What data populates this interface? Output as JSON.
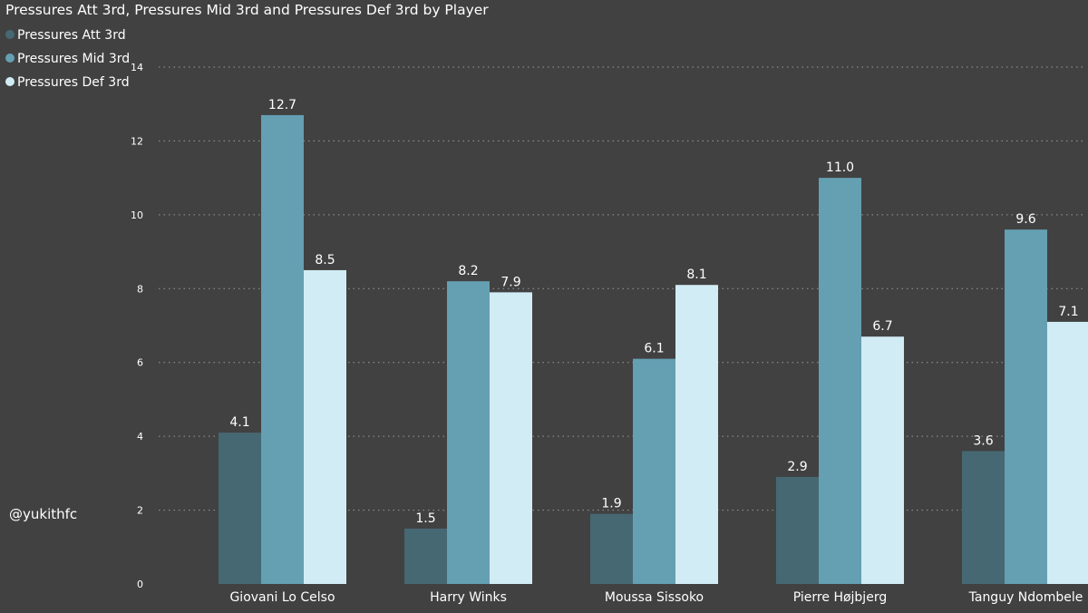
{
  "watermark": "@yukithfc",
  "chart_data": {
    "type": "bar",
    "title": "Pressures Att 3rd, Pressures Mid 3rd and Pressures Def 3rd by Player",
    "categories": [
      "Giovani Lo Celso",
      "Harry Winks",
      "Moussa Sissoko",
      "Pierre Højbjerg",
      "Tanguy Ndombele"
    ],
    "series": [
      {
        "name": "Pressures Att 3rd",
        "color": "#466872",
        "values": [
          4.1,
          1.5,
          1.9,
          2.9,
          3.6
        ]
      },
      {
        "name": "Pressures Mid 3rd",
        "color": "#659fb2",
        "values": [
          12.7,
          8.2,
          6.1,
          11.0,
          9.6
        ]
      },
      {
        "name": "Pressures Def 3rd",
        "color": "#d1ecf4",
        "values": [
          8.5,
          7.9,
          8.1,
          6.7,
          7.1
        ]
      }
    ],
    "y_ticks": [
      "0",
      "2",
      "4",
      "6",
      "8",
      "10",
      "12",
      "14"
    ],
    "ylim": [
      0,
      14
    ],
    "grid": true,
    "legend_position": "top-left",
    "xlabel": "",
    "ylabel": ""
  }
}
